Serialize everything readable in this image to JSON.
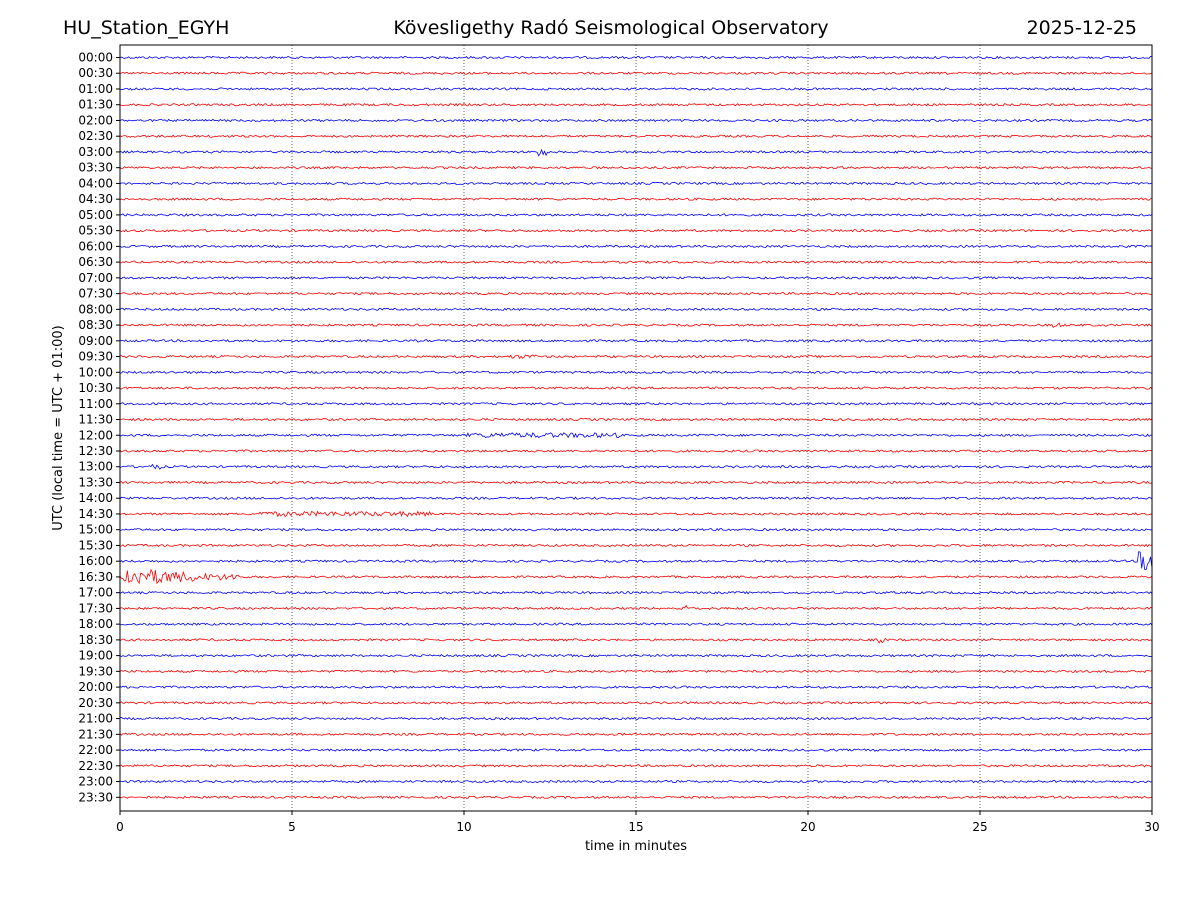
{
  "header": {
    "station": "HU_Station_EGYH",
    "observatory": "Kövesligethy Radó Seismological Observatory",
    "date": "2025-12-25"
  },
  "chart_data": {
    "type": "line",
    "title": "Kövesligethy Radó Seismological Observatory",
    "xlabel": "time in minutes",
    "ylabel": "UTC (local time = UTC + 01:00)",
    "xlim": [
      0,
      30
    ],
    "x_ticks": [
      "0",
      "5",
      "10",
      "15",
      "20",
      "25",
      "30"
    ],
    "grid_x": true,
    "colors": {
      "even_rows": "#0000ff",
      "odd_rows": "#ff0000"
    },
    "rows": [
      {
        "label": "00:00",
        "events": []
      },
      {
        "label": "00:30",
        "events": []
      },
      {
        "label": "01:00",
        "events": []
      },
      {
        "label": "01:30",
        "events": []
      },
      {
        "label": "02:00",
        "events": []
      },
      {
        "label": "02:30",
        "events": []
      },
      {
        "label": "03:00",
        "events": [
          {
            "start": 12.1,
            "end": 12.4,
            "amp": 5
          }
        ]
      },
      {
        "label": "03:30",
        "events": []
      },
      {
        "label": "04:00",
        "events": []
      },
      {
        "label": "04:30",
        "events": []
      },
      {
        "label": "05:00",
        "events": []
      },
      {
        "label": "05:30",
        "events": []
      },
      {
        "label": "06:00",
        "events": []
      },
      {
        "label": "06:30",
        "events": []
      },
      {
        "label": "07:00",
        "events": []
      },
      {
        "label": "07:30",
        "events": []
      },
      {
        "label": "08:00",
        "events": []
      },
      {
        "label": "08:30",
        "events": [
          {
            "start": 27.1,
            "end": 27.4,
            "amp": 2.5
          }
        ]
      },
      {
        "label": "09:00",
        "events": []
      },
      {
        "label": "09:30",
        "events": [
          {
            "start": 11.3,
            "end": 12.1,
            "amp": 2
          }
        ]
      },
      {
        "label": "10:00",
        "events": []
      },
      {
        "label": "10:30",
        "events": []
      },
      {
        "label": "11:00",
        "events": []
      },
      {
        "label": "11:30",
        "events": []
      },
      {
        "label": "12:00",
        "events": [
          {
            "start": 10.1,
            "end": 14.5,
            "amp": 2.5
          }
        ]
      },
      {
        "label": "12:30",
        "events": []
      },
      {
        "label": "13:00",
        "events": [
          {
            "start": 0.7,
            "end": 1.2,
            "amp": 2.5
          }
        ]
      },
      {
        "label": "13:30",
        "events": []
      },
      {
        "label": "14:00",
        "events": []
      },
      {
        "label": "14:30",
        "events": [
          {
            "start": 4.0,
            "end": 9.0,
            "amp": 2.5
          }
        ]
      },
      {
        "label": "15:00",
        "events": []
      },
      {
        "label": "15:30",
        "events": []
      },
      {
        "label": "16:00",
        "events": [
          {
            "start": 29.6,
            "end": 30,
            "amp": 10
          }
        ]
      },
      {
        "label": "16:30",
        "events": [
          {
            "start": 0,
            "end": 3.5,
            "amp": 9,
            "decay": true
          }
        ]
      },
      {
        "label": "17:00",
        "events": []
      },
      {
        "label": "17:30",
        "events": [
          {
            "start": 16.3,
            "end": 16.7,
            "amp": 3
          }
        ]
      },
      {
        "label": "18:00",
        "events": []
      },
      {
        "label": "18:30",
        "events": [
          {
            "start": 22.0,
            "end": 22.3,
            "amp": 3
          }
        ]
      },
      {
        "label": "19:00",
        "events": []
      },
      {
        "label": "19:30",
        "events": []
      },
      {
        "label": "20:00",
        "events": []
      },
      {
        "label": "20:30",
        "events": []
      },
      {
        "label": "21:00",
        "events": []
      },
      {
        "label": "21:30",
        "events": []
      },
      {
        "label": "22:00",
        "events": []
      },
      {
        "label": "22:30",
        "events": []
      },
      {
        "label": "23:00",
        "events": []
      },
      {
        "label": "23:30",
        "events": []
      }
    ]
  }
}
